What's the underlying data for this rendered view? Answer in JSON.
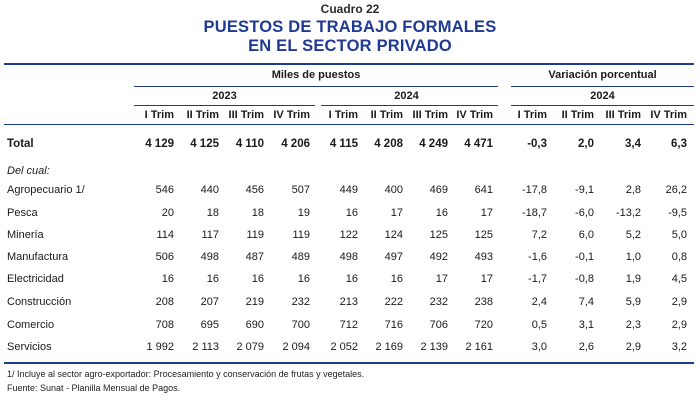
{
  "caption": "Cuadro 22",
  "title_line1": "PUESTOS DE TRABAJO FORMALES",
  "title_line2": "EN EL SECTOR PRIVADO",
  "header": {
    "group_miles": "Miles de puestos",
    "group_var": "Variación porcentual",
    "year_2023": "2023",
    "year_2024": "2024",
    "year_2024_var": "2024",
    "trims_2023": [
      "I Trim",
      "II Trim",
      "III Trim",
      "IV Trim"
    ],
    "trims_2024": [
      "I Trim",
      "II Trim",
      "III Trim",
      "IV Trim"
    ],
    "trims_var": [
      "I Trim",
      "II Trim",
      "III Trim",
      "IV Trim"
    ]
  },
  "total": {
    "label": "Total",
    "values": [
      "4 129",
      "4 125",
      "4 110",
      "4 206",
      "4 115",
      "4 208",
      "4 249",
      "4 471"
    ],
    "var": [
      "-0,3",
      "2,0",
      "3,4",
      "6,3"
    ]
  },
  "del_cual": "Del cual:",
  "rows": [
    {
      "label": "Agropecuario 1/",
      "values": [
        "546",
        "440",
        "456",
        "507",
        "449",
        "400",
        "469",
        "641"
      ],
      "var": [
        "-17,8",
        "-9,1",
        "2,8",
        "26,2"
      ]
    },
    {
      "label": "Pesca",
      "values": [
        "20",
        "18",
        "18",
        "19",
        "16",
        "17",
        "16",
        "17"
      ],
      "var": [
        "-18,7",
        "-6,0",
        "-13,2",
        "-9,5"
      ]
    },
    {
      "label": "Minería",
      "values": [
        "114",
        "117",
        "119",
        "119",
        "122",
        "124",
        "125",
        "125"
      ],
      "var": [
        "7,2",
        "6,0",
        "5,2",
        "5,0"
      ]
    },
    {
      "label": "Manufactura",
      "values": [
        "506",
        "498",
        "487",
        "489",
        "498",
        "497",
        "492",
        "493"
      ],
      "var": [
        "-1,6",
        "-0,1",
        "1,0",
        "0,8"
      ]
    },
    {
      "label": "Electricidad",
      "values": [
        "16",
        "16",
        "16",
        "16",
        "16",
        "16",
        "17",
        "17"
      ],
      "var": [
        "-1,7",
        "-0,8",
        "1,9",
        "4,5"
      ]
    },
    {
      "label": "Construcción",
      "values": [
        "208",
        "207",
        "219",
        "232",
        "213",
        "222",
        "232",
        "238"
      ],
      "var": [
        "2,4",
        "7,4",
        "5,9",
        "2,9"
      ]
    },
    {
      "label": "Comercio",
      "values": [
        "708",
        "695",
        "690",
        "700",
        "712",
        "716",
        "706",
        "720"
      ],
      "var": [
        "0,5",
        "3,1",
        "2,3",
        "2,9"
      ]
    },
    {
      "label": "Servicios",
      "values": [
        "1 992",
        "2 113",
        "2 079",
        "2 094",
        "2 052",
        "2 169",
        "2 139",
        "2 161"
      ],
      "var": [
        "3,0",
        "2,6",
        "2,9",
        "3,2"
      ]
    }
  ],
  "footnote1": "1/ Incluye al sector agro-exportador: Procesamiento y conservación de frutas y vegetales.",
  "footnote2": "Fuente: Sunat - Planilla Mensual de Pagos."
}
